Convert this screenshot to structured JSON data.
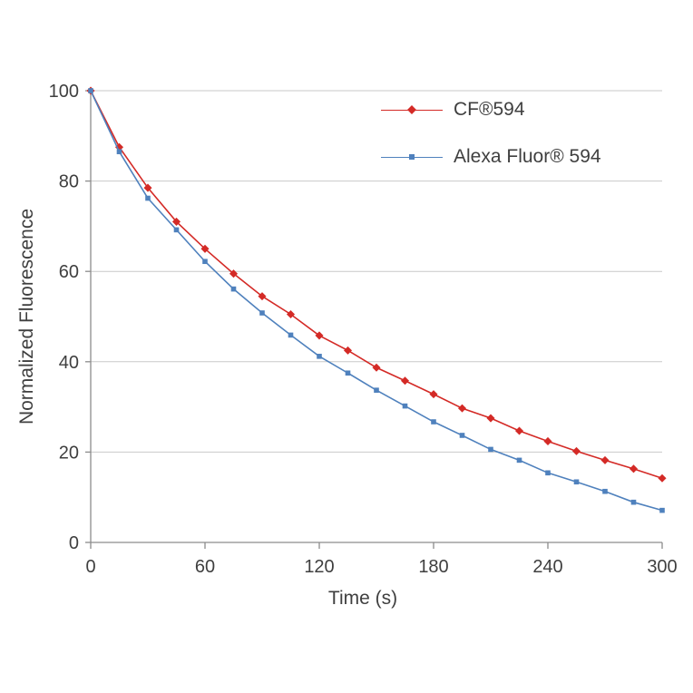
{
  "chart_data": {
    "type": "line",
    "title": "",
    "xlabel": "Time (s)",
    "ylabel": "Normalized Fluorescence",
    "xlim": [
      0,
      300
    ],
    "ylim": [
      0,
      100
    ],
    "x_ticks": [
      0,
      60,
      120,
      180,
      240,
      300
    ],
    "y_ticks": [
      0,
      20,
      40,
      60,
      80,
      100
    ],
    "grid": "horizontal",
    "legend_position": "top-right-inside",
    "x": [
      0,
      15,
      30,
      45,
      60,
      75,
      90,
      105,
      120,
      135,
      150,
      165,
      180,
      195,
      210,
      225,
      240,
      255,
      270,
      285,
      300
    ],
    "series": [
      {
        "name": "CF®594",
        "color": "#d42a26",
        "marker": "diamond",
        "values": [
          100,
          87.5,
          78.5,
          71,
          65,
          59.5,
          54.5,
          50.5,
          45.8,
          42.5,
          38.7,
          35.8,
          32.8,
          29.7,
          27.5,
          24.7,
          22.4,
          20.2,
          18.2,
          16.3,
          14.2
        ]
      },
      {
        "name": "Alexa Fluor® 594",
        "color": "#4f81bd",
        "marker": "square",
        "values": [
          100,
          86.5,
          76.2,
          69.2,
          62.2,
          56.1,
          50.8,
          45.9,
          41.2,
          37.5,
          33.7,
          30.2,
          26.7,
          23.7,
          20.6,
          18.2,
          15.4,
          13.4,
          11.3,
          8.9,
          7.1
        ]
      }
    ]
  },
  "colors": {
    "grid": "#c9c9c9",
    "axis": "#8c8c8c",
    "text": "#3f3f3f",
    "background": "#ffffff"
  }
}
